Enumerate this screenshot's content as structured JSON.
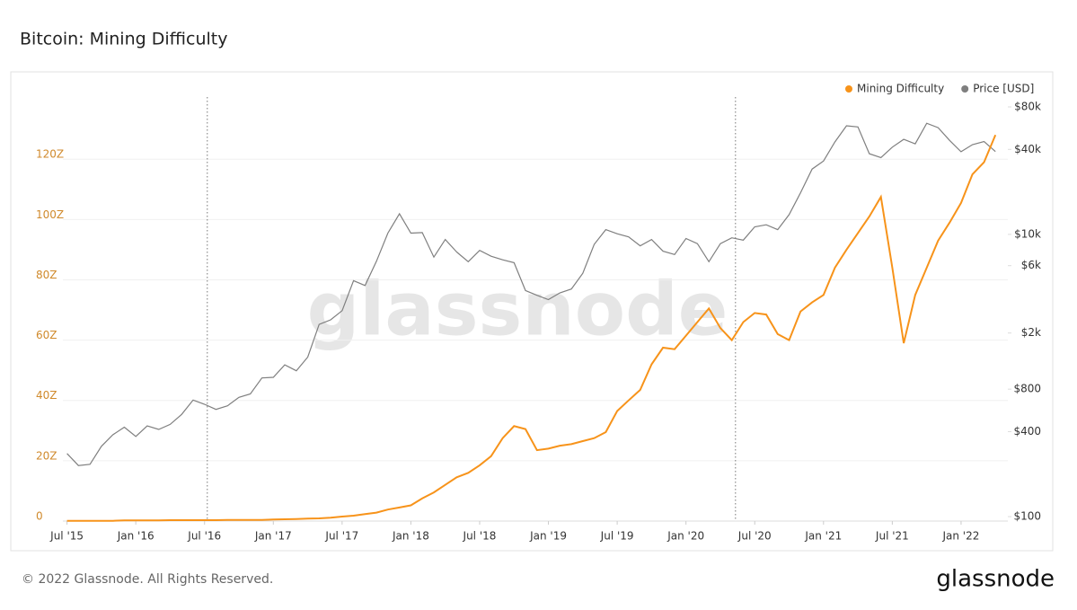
{
  "title": "Bitcoin: Mining Difficulty",
  "footer": "© 2022 Glassnode. All Rights Reserved.",
  "logo": "glassnode",
  "chart_data": {
    "type": "line",
    "watermark": "glassnode",
    "x": [
      2015.5,
      2015.583,
      2015.667,
      2015.75,
      2015.833,
      2015.917,
      2016,
      2016.083,
      2016.167,
      2016.25,
      2016.333,
      2016.417,
      2016.5,
      2016.583,
      2016.667,
      2016.75,
      2016.833,
      2016.917,
      2017,
      2017.083,
      2017.167,
      2017.25,
      2017.333,
      2017.417,
      2017.5,
      2017.583,
      2017.667,
      2017.75,
      2017.833,
      2017.917,
      2018,
      2018.083,
      2018.167,
      2018.25,
      2018.333,
      2018.417,
      2018.5,
      2018.583,
      2018.667,
      2018.75,
      2018.833,
      2018.917,
      2019,
      2019.083,
      2019.167,
      2019.25,
      2019.333,
      2019.417,
      2019.5,
      2019.583,
      2019.667,
      2019.75,
      2019.833,
      2019.917,
      2020,
      2020.083,
      2020.167,
      2020.25,
      2020.333,
      2020.417,
      2020.5,
      2020.583,
      2020.667,
      2020.75,
      2020.833,
      2020.917,
      2021,
      2021.083,
      2021.167,
      2021.25,
      2021.333,
      2021.417,
      2021.5,
      2021.583,
      2021.667,
      2021.75,
      2021.833,
      2021.917,
      2022,
      2022.083,
      2022.167,
      2022.25
    ],
    "series": [
      {
        "name": "Mining Difficulty",
        "color": "#f7931a",
        "axis": "y",
        "values": [
          0.1,
          0.1,
          0.1,
          0.1,
          0.1,
          0.2,
          0.2,
          0.2,
          0.2,
          0.3,
          0.3,
          0.3,
          0.3,
          0.3,
          0.4,
          0.4,
          0.4,
          0.4,
          0.5,
          0.6,
          0.7,
          0.8,
          0.9,
          1.1,
          1.5,
          1.8,
          2.3,
          2.8,
          3.8,
          4.5,
          5.2,
          7.5,
          9.5,
          12,
          14.5,
          16,
          18.5,
          21.5,
          27.5,
          31.5,
          30.5,
          23.5,
          24,
          25,
          25.5,
          26.5,
          27.5,
          29.5,
          36.5,
          40,
          43.5,
          52,
          57.5,
          57,
          61.5,
          66,
          70.5,
          64,
          60,
          66,
          69,
          68.5,
          62,
          60,
          69.5,
          72.5,
          75,
          84,
          90,
          95.5,
          101,
          107.5,
          84,
          59,
          75,
          84,
          93,
          99,
          105.5,
          115,
          119,
          128
        ]
      },
      {
        "name": "Price [USD]",
        "color": "#7f7f7f",
        "axis": "y2",
        "values": [
          280,
          230,
          235,
          315,
          380,
          430,
          370,
          440,
          415,
          450,
          530,
          670,
          625,
          575,
          610,
          700,
          740,
          960,
          970,
          1190,
          1080,
          1350,
          2300,
          2480,
          2880,
          4700,
          4340,
          6450,
          10200,
          14000,
          10200,
          10300,
          6900,
          9200,
          7500,
          6400,
          7700,
          7000,
          6600,
          6300,
          4000,
          3700,
          3450,
          3850,
          4100,
          5300,
          8500,
          10800,
          10100,
          9600,
          8300,
          9200,
          7600,
          7200,
          9350,
          8600,
          6400,
          8600,
          9450,
          9100,
          11300,
          11700,
          10800,
          13800,
          19700,
          29000,
          33100,
          45200,
          58800,
          57700,
          37300,
          35000,
          41500,
          47100,
          43800,
          61300,
          57000,
          46300,
          38500,
          43200,
          45500,
          38600
        ]
      }
    ],
    "xlim": [
      2015.47,
      2022.34
    ],
    "xticks": [
      {
        "value": 2015.5,
        "label": "Jul '15"
      },
      {
        "value": 2016,
        "label": "Jan '16"
      },
      {
        "value": 2016.5,
        "label": "Jul '16"
      },
      {
        "value": 2017,
        "label": "Jan '17"
      },
      {
        "value": 2017.5,
        "label": "Jul '17"
      },
      {
        "value": 2018,
        "label": "Jan '18"
      },
      {
        "value": 2018.5,
        "label": "Jul '18"
      },
      {
        "value": 2019,
        "label": "Jan '19"
      },
      {
        "value": 2019.5,
        "label": "Jul '19"
      },
      {
        "value": 2020,
        "label": "Jan '20"
      },
      {
        "value": 2020.5,
        "label": "Jul '20"
      },
      {
        "value": 2021,
        "label": "Jan '21"
      },
      {
        "value": 2021.5,
        "label": "Jul '21"
      },
      {
        "value": 2022,
        "label": "Jan '22"
      }
    ],
    "ylim": [
      0,
      143
    ],
    "yticks": [
      0,
      {
        "value": 20,
        "label": "20Z"
      },
      {
        "value": 40,
        "label": "40Z"
      },
      {
        "value": 60,
        "label": "60Z"
      },
      {
        "value": 80,
        "label": "80Z"
      },
      {
        "value": 100,
        "label": "100Z"
      },
      {
        "value": 120,
        "label": "120Z"
      }
    ],
    "y2lim": [
      93,
      105700
    ],
    "y2scale": "log",
    "y2ticks": [
      {
        "value": 100,
        "label": "$100"
      },
      {
        "value": 400,
        "label": "$400"
      },
      {
        "value": 800,
        "label": "$800"
      },
      {
        "value": 2000,
        "label": "$2k"
      },
      {
        "value": 6000,
        "label": "$6k"
      },
      {
        "value": 10000,
        "label": "$10k"
      },
      {
        "value": 40000,
        "label": "$40k"
      },
      {
        "value": 80000,
        "label": "$80k"
      }
    ],
    "halvings": [
      2016.52,
      2020.36
    ],
    "grid": true,
    "legend": "top-right",
    "ytick_color": "#d08a2c"
  }
}
